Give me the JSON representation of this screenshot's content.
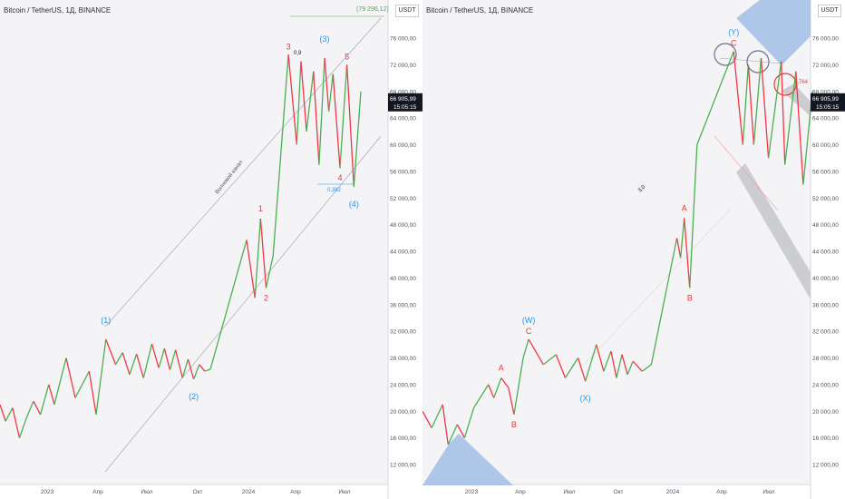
{
  "colors": {
    "up": "#4caf50",
    "down": "#f23645",
    "wave_blue": "#2196f3",
    "wave_red": "#e53935",
    "axis_text": "#50535e",
    "price_tag_bg": "#131722",
    "box_blue": "#90b4e3",
    "circle_gray": "#6b7089",
    "circle_red": "#e53935",
    "channel_gray": "#c8c9cd"
  },
  "chart_data": [
    {
      "type": "line",
      "title": "Bitcoin / TetherUS, 1Д, BINANCE",
      "currency": "USDT",
      "y_ticks": [
        "76 000,00",
        "72 000,00",
        "68 000,00",
        "64 000,00",
        "60 000,00",
        "56 000,00",
        "52 000,00",
        "48 000,00",
        "44 000,00",
        "40 000,00",
        "36 000,00",
        "32 000,00",
        "28 000,00",
        "24 000,00",
        "20 000,00",
        "16 000,00",
        "12 000,00"
      ],
      "y_tick_values": [
        76000,
        72000,
        68000,
        64000,
        60000,
        56000,
        52000,
        48000,
        44000,
        40000,
        36000,
        32000,
        28000,
        24000,
        20000,
        16000,
        12000
      ],
      "ylim": [
        10000,
        80000
      ],
      "x_ticks": [
        "2023",
        "Апр",
        "Июл",
        "Окт",
        "2024",
        "Апр",
        "Июл"
      ],
      "price_tag": {
        "price": "66 905,99",
        "time": "15:05:15",
        "value": 66905.99
      },
      "target_label": {
        "text": "(79 296,12)",
        "value": 79296.12
      },
      "series": [
        {
          "values": [
            21000,
            18500,
            20500,
            16000,
            19000,
            21500,
            19500,
            24000,
            21000,
            28000,
            22000,
            26000,
            19500,
            30800,
            27000,
            28800,
            25500,
            28600,
            25000,
            30100,
            26500,
            29400,
            26200,
            29200,
            25000,
            27800,
            24800,
            27000,
            26000,
            26300,
            45700,
            37000,
            48900,
            38500,
            43300,
            73500,
            60000,
            72500,
            62000,
            71000,
            57000,
            73000,
            65000,
            70600,
            56500,
            72000,
            53700,
            68000
          ]
        }
      ],
      "wave_labels": [
        {
          "text": "(1)",
          "color": "blue",
          "x": 30800
        },
        {
          "text": "(2)",
          "color": "blue",
          "x": 24800
        },
        {
          "text": "1",
          "color": "red",
          "x": 48900
        },
        {
          "text": "2",
          "color": "red",
          "x": 38500
        },
        {
          "text": "3",
          "color": "red",
          "x": 73500
        },
        {
          "text": "(3)",
          "color": "blue",
          "x": 73000
        },
        {
          "text": "5",
          "color": "red",
          "x": 72000
        },
        {
          "text": "4",
          "color": "red",
          "x": 56500
        },
        {
          "text": "(4)",
          "color": "blue",
          "x": 53700
        }
      ],
      "annotations": [
        "0,9",
        "0,382",
        "Волновой канал"
      ]
    },
    {
      "type": "line",
      "title": "Bitcoin / TetherUS, 1Д, BINANCE",
      "currency": "USDT",
      "y_ticks": [
        "76 000,00",
        "72 000,00",
        "68 000,00",
        "64 000,00",
        "60 000,00",
        "56 000,00",
        "52 000,00",
        "48 000,00",
        "44 000,00",
        "40 000,00",
        "36 000,00",
        "32 000,00",
        "28 000,00",
        "24 000,00",
        "20 000,00",
        "16 000,00",
        "12 000,00"
      ],
      "y_tick_values": [
        76000,
        72000,
        68000,
        64000,
        60000,
        56000,
        52000,
        48000,
        44000,
        40000,
        36000,
        32000,
        28000,
        24000,
        20000,
        16000,
        12000
      ],
      "ylim": [
        10000,
        80000
      ],
      "x_ticks": [
        "2023",
        "Апр",
        "Июл",
        "Окт",
        "2024",
        "Апр",
        "Июл"
      ],
      "price_tag": {
        "price": "66 905,99",
        "time": "15:05:15",
        "value": 66905.99
      },
      "series": [
        {
          "values": [
            20000,
            17500,
            21000,
            15000,
            18000,
            16000,
            20500,
            24000,
            22000,
            25000,
            23500,
            19500,
            28000,
            30800,
            27000,
            28500,
            25000,
            28000,
            24500,
            30000,
            26000,
            29000,
            25000,
            28500,
            25500,
            27500,
            26000,
            27000,
            46000,
            43000,
            49000,
            38500,
            60000,
            74000,
            60000,
            72000,
            60000,
            73000,
            58000,
            72500,
            57000,
            71000,
            54000,
            68000
          ]
        }
      ],
      "wave_labels": [
        {
          "text": "A",
          "color": "red",
          "x": 25000
        },
        {
          "text": "B",
          "color": "red",
          "x": 19500
        },
        {
          "text": "(W)",
          "color": "blue",
          "x": 30800
        },
        {
          "text": "C",
          "color": "red",
          "x": 30800
        },
        {
          "text": "(X)",
          "color": "blue",
          "x": 24500
        },
        {
          "text": "A",
          "color": "red",
          "x": 49000
        },
        {
          "text": "B",
          "color": "red",
          "x": 38500
        },
        {
          "text": "(Y)",
          "color": "blue",
          "x": 74000
        },
        {
          "text": "C",
          "color": "red",
          "x": 74000
        }
      ],
      "annotations": [
        "0,764",
        "3,0"
      ]
    }
  ]
}
